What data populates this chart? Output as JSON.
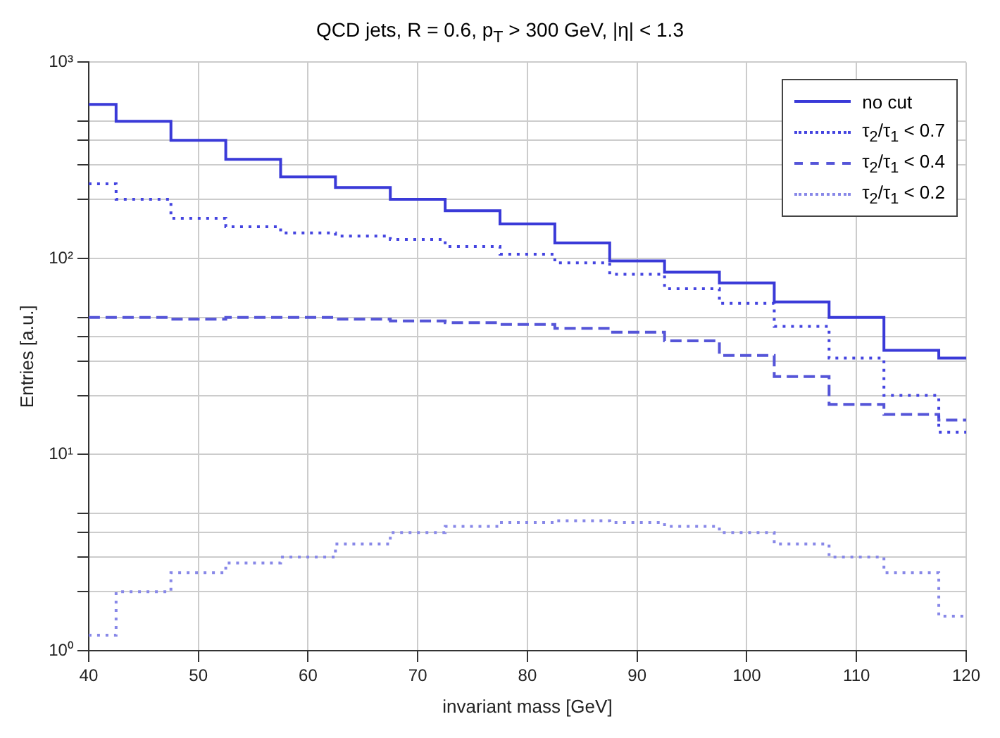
{
  "chart_data": {
    "type": "step",
    "title": "QCD jets, R = 0.6, p$_{T}$ > 300 GeV, |η| < 1.3",
    "xlabel": "invariant mass [GeV]",
    "ylabel": "Entries [a.u.]",
    "x": [
      40,
      45,
      50,
      55,
      60,
      65,
      70,
      75,
      80,
      85,
      90,
      95,
      100,
      105,
      110,
      115,
      120
    ],
    "xlim": [
      40,
      120
    ],
    "xticks": [
      40,
      50,
      60,
      70,
      80,
      90,
      100,
      110,
      120
    ],
    "ylim": [
      1,
      1000
    ],
    "yticks": [
      {
        "value": 1,
        "label": "10⁰"
      },
      {
        "value": 2,
        "label": null
      },
      {
        "value": 3,
        "label": null
      },
      {
        "value": 4,
        "label": null
      },
      {
        "value": 5,
        "label": null
      },
      {
        "value": 10,
        "label": "10¹"
      },
      {
        "value": 20,
        "label": null
      },
      {
        "value": 30,
        "label": null
      },
      {
        "value": 40,
        "label": null
      },
      {
        "value": 50,
        "label": null
      },
      {
        "value": 100,
        "label": "10²"
      },
      {
        "value": 200,
        "label": null
      },
      {
        "value": 300,
        "label": null
      },
      {
        "value": 400,
        "label": null
      },
      {
        "value": 500,
        "label": null
      },
      {
        "value": 1000,
        "label": "10³"
      }
    ],
    "log": "y",
    "grid": true,
    "legend": "top right",
    "series": [
      {
        "name": "no cut",
        "color": "#3a3ad8",
        "line_style": "solid",
        "values": [
          610,
          500,
          400,
          320,
          260,
          230,
          200,
          175,
          150,
          120,
          97,
          85,
          75,
          60,
          50,
          34,
          31
        ]
      },
      {
        "name": "τ$_{2}$/τ$_{1}$ < 0.7",
        "color": "#4444e0",
        "line_style": "dotted",
        "values": [
          240,
          200,
          160,
          145,
          135,
          130,
          125,
          115,
          105,
          95,
          83,
          70,
          59,
          45,
          31,
          20,
          13
        ]
      },
      {
        "name": "τ$_{2}$/τ$_{1}$ < 0.4",
        "color": "#5555d8",
        "line_style": "dashed",
        "values": [
          50,
          50,
          49,
          50,
          50,
          49,
          48,
          47,
          46,
          44,
          42,
          38,
          32,
          25,
          18,
          16,
          15
        ]
      },
      {
        "name": "τ$_{2}$/τ$_{1}$ < 0.2",
        "color": "#8888e8",
        "line_style": "dotted",
        "values": [
          1.2,
          2,
          2.5,
          2.8,
          3,
          3.5,
          4,
          4.3,
          4.5,
          4.6,
          4.5,
          4.3,
          4,
          3.5,
          3,
          2.5,
          1.5
        ]
      }
    ]
  }
}
